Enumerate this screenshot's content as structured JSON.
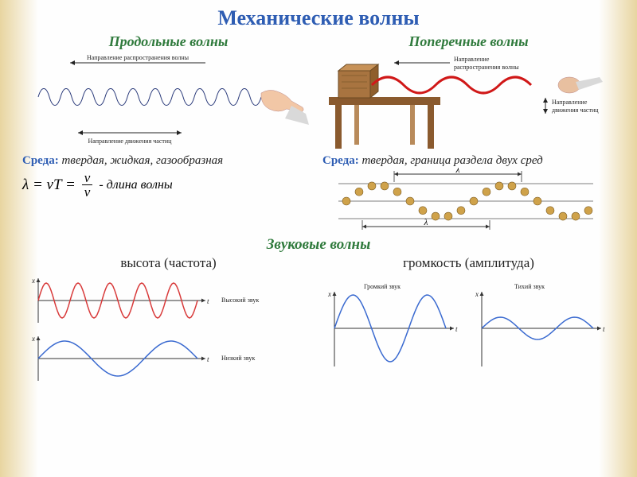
{
  "title": "Механические волны",
  "left": {
    "subtitle": "Продольные волны",
    "arrow_top": "Направление распространения волны",
    "arrow_bottom": "Направление движения частиц",
    "medium_label": "Среда:",
    "medium_value": "твердая, жидкая, газообразная",
    "formula_lhs": "λ = vT =",
    "formula_num": "v",
    "formula_den": "ν",
    "formula_desc": "- длина волны",
    "spring": {
      "color": "#2a3a7a",
      "hand_color": "#f2c7a6",
      "sleeve_color": "#d9d9d9"
    }
  },
  "right": {
    "subtitle": "Поперечные волны",
    "label1": "Направление распространения волны",
    "label2": "Направление движения частиц",
    "medium_label": "Среда:",
    "medium_value": "твердая, граница раздела двух сред",
    "table_color": "#8a5a2e",
    "block_color": "#a87440",
    "wave_color": "#d01818",
    "beads": {
      "color": "#cfa24a",
      "lambda": "λ"
    }
  },
  "sound": {
    "title": "Звуковые волны",
    "pitch": {
      "label": "высота (частота)",
      "high": "Высокий звук",
      "low": "Низкий звук",
      "high_color": "#d83a3a",
      "low_color": "#3a6ad0",
      "axis_x": "t",
      "axis_y": "x"
    },
    "loud": {
      "label": "громкость (амплитуда)",
      "loud_text": "Громкий звук",
      "quiet_text": "Тихий звук",
      "loud_color": "#3a6ad0",
      "quiet_color": "#3a6ad0",
      "axis_x": "t",
      "axis_y": "x"
    }
  },
  "style": {
    "title_color": "#2e5db3",
    "subtitle_color": "#2f7a3c"
  }
}
